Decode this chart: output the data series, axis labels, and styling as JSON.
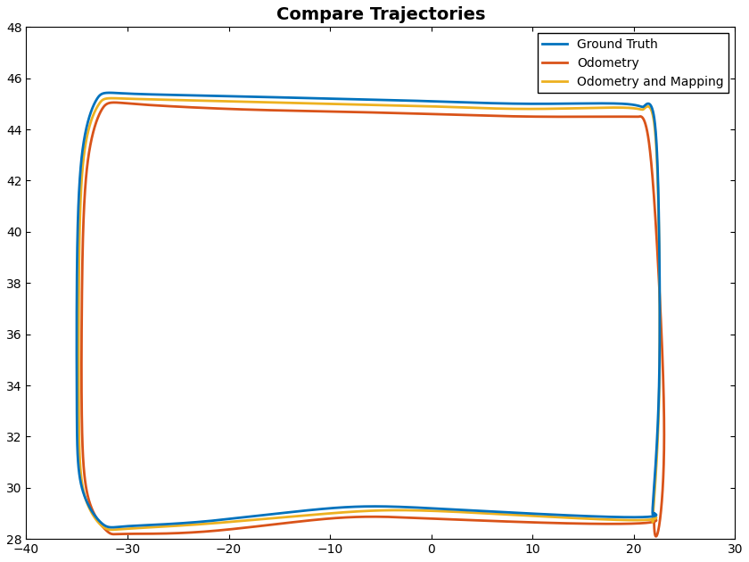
{
  "title": "Compare Trajectories",
  "title_fontsize": 14,
  "title_fontweight": "bold",
  "xlim": [
    -40,
    30
  ],
  "ylim": [
    28,
    48
  ],
  "xticks": [
    -40,
    -30,
    -20,
    -10,
    0,
    10,
    20,
    30
  ],
  "yticks": [
    28,
    30,
    32,
    34,
    36,
    38,
    40,
    42,
    44,
    46,
    48
  ],
  "gt_color": "#0072BD",
  "odom_color": "#D95319",
  "odom_map_color": "#EDB120",
  "line_width": 2.0,
  "legend_labels": [
    "Ground Truth",
    "Odometry",
    "Odometry and Mapping"
  ],
  "legend_loc": "upper right",
  "background_color": "#ffffff"
}
